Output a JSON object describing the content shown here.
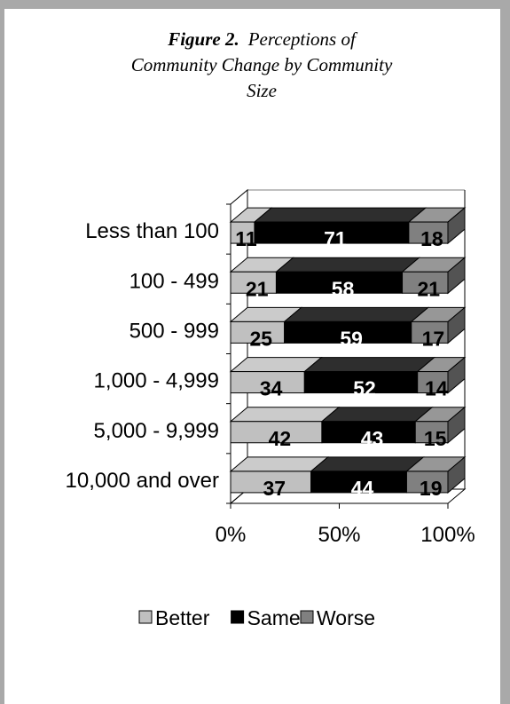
{
  "title": {
    "figure_label": "Figure 2.",
    "line1": "Perceptions of",
    "line2": "Community Change by Community",
    "line3": "Size"
  },
  "chart_data": {
    "type": "bar",
    "orientation": "horizontal",
    "stacked": "percent",
    "three_d": true,
    "categories": [
      "Less than 100",
      "100 - 499",
      "500 - 999",
      "1,000 - 4,999",
      "5,000 - 9,999",
      "10,000 and over"
    ],
    "series": [
      {
        "name": "Better",
        "values": [
          11,
          21,
          25,
          34,
          42,
          37
        ],
        "color": "#c0c0c0"
      },
      {
        "name": "Same",
        "values": [
          71,
          58,
          59,
          52,
          43,
          44
        ],
        "color": "#000000"
      },
      {
        "name": "Worse",
        "values": [
          18,
          21,
          17,
          14,
          15,
          19
        ],
        "color": "#808080"
      }
    ],
    "xlim": [
      0,
      100
    ],
    "x_ticks": [
      "0%",
      "50%",
      "100%"
    ],
    "legend_position": "bottom",
    "grid": false
  }
}
